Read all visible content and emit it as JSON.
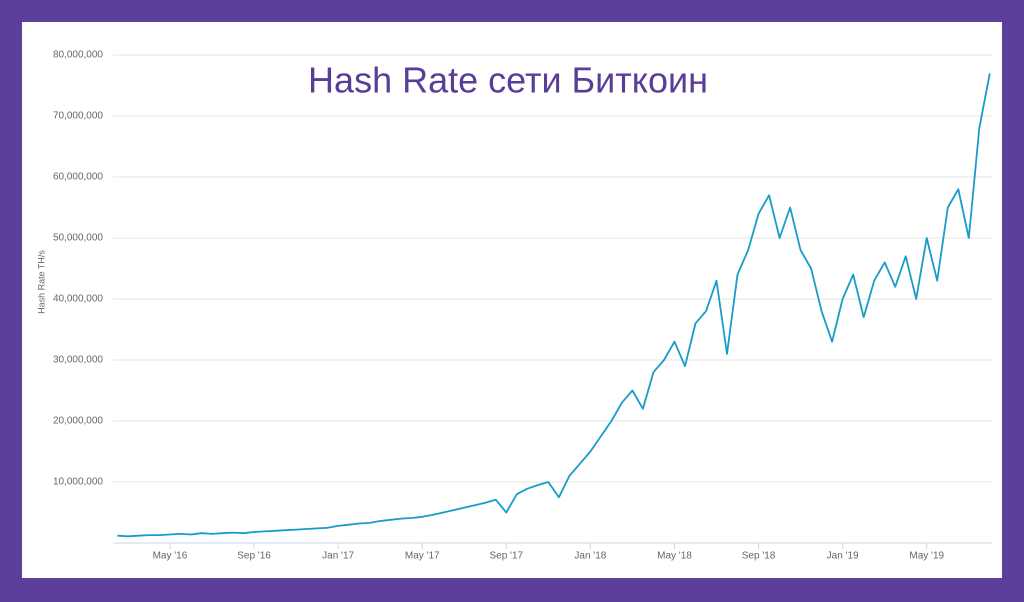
{
  "chart_data": {
    "type": "line",
    "title": "Hash Rate сети Биткоин",
    "y_label": "Hash Rate TH/s",
    "categories": [
      null,
      null,
      null,
      null,
      null,
      "May '16",
      null,
      null,
      null,
      null,
      null,
      null,
      null,
      "Sep '16",
      null,
      null,
      null,
      null,
      null,
      null,
      null,
      "Jan '17",
      null,
      null,
      null,
      null,
      null,
      null,
      null,
      "May '17",
      null,
      null,
      null,
      null,
      null,
      null,
      null,
      "Sep '17",
      null,
      null,
      null,
      null,
      null,
      null,
      null,
      "Jan '18",
      null,
      null,
      null,
      null,
      null,
      null,
      null,
      "May '18",
      null,
      null,
      null,
      null,
      null,
      null,
      null,
      "Sep '18",
      null,
      null,
      null,
      null,
      null,
      null,
      null,
      "Jan '19",
      null,
      null,
      null,
      null,
      null,
      null,
      null,
      "May '19",
      null,
      null,
      null,
      null,
      null,
      null
    ],
    "series": [
      {
        "name": "Hash Rate",
        "color": "#1a9bc9",
        "values": [
          1200000,
          1100000,
          1200000,
          1300000,
          1300000,
          1400000,
          1500000,
          1400000,
          1600000,
          1500000,
          1600000,
          1700000,
          1600000,
          1800000,
          1900000,
          2000000,
          2100000,
          2200000,
          2300000,
          2400000,
          2500000,
          2800000,
          3000000,
          3200000,
          3300000,
          3600000,
          3800000,
          4000000,
          4100000,
          4300000,
          4600000,
          5000000,
          5400000,
          5800000,
          6200000,
          6600000,
          7100000,
          5000000,
          8000000,
          8900000,
          9500000,
          10000000,
          7500000,
          11000000,
          13000000,
          15000000,
          17500000,
          20000000,
          23000000,
          25000000,
          22000000,
          28000000,
          30000000,
          33000000,
          29000000,
          36000000,
          38000000,
          43000000,
          31000000,
          44000000,
          48000000,
          54000000,
          57000000,
          50000000,
          55000000,
          48000000,
          45000000,
          38000000,
          33000000,
          40000000,
          44000000,
          37000000,
          43000000,
          46000000,
          42000000,
          47000000,
          40000000,
          50000000,
          43000000,
          55000000,
          58000000,
          50000000,
          68000000,
          77000000
        ]
      }
    ],
    "ylim": [
      0,
      80000000
    ],
    "yticks": [
      {
        "value": 10000000,
        "label": "10,000,000"
      },
      {
        "value": 20000000,
        "label": "20,000,000"
      },
      {
        "value": 30000000,
        "label": "30,000,000"
      },
      {
        "value": 40000000,
        "label": "40,000,000"
      },
      {
        "value": 50000000,
        "label": "50,000,000"
      },
      {
        "value": 60000000,
        "label": "60,000,000"
      },
      {
        "value": 70000000,
        "label": "70,000,000"
      },
      {
        "value": 80000000,
        "label": "80,000,000"
      }
    ],
    "grid": true
  }
}
